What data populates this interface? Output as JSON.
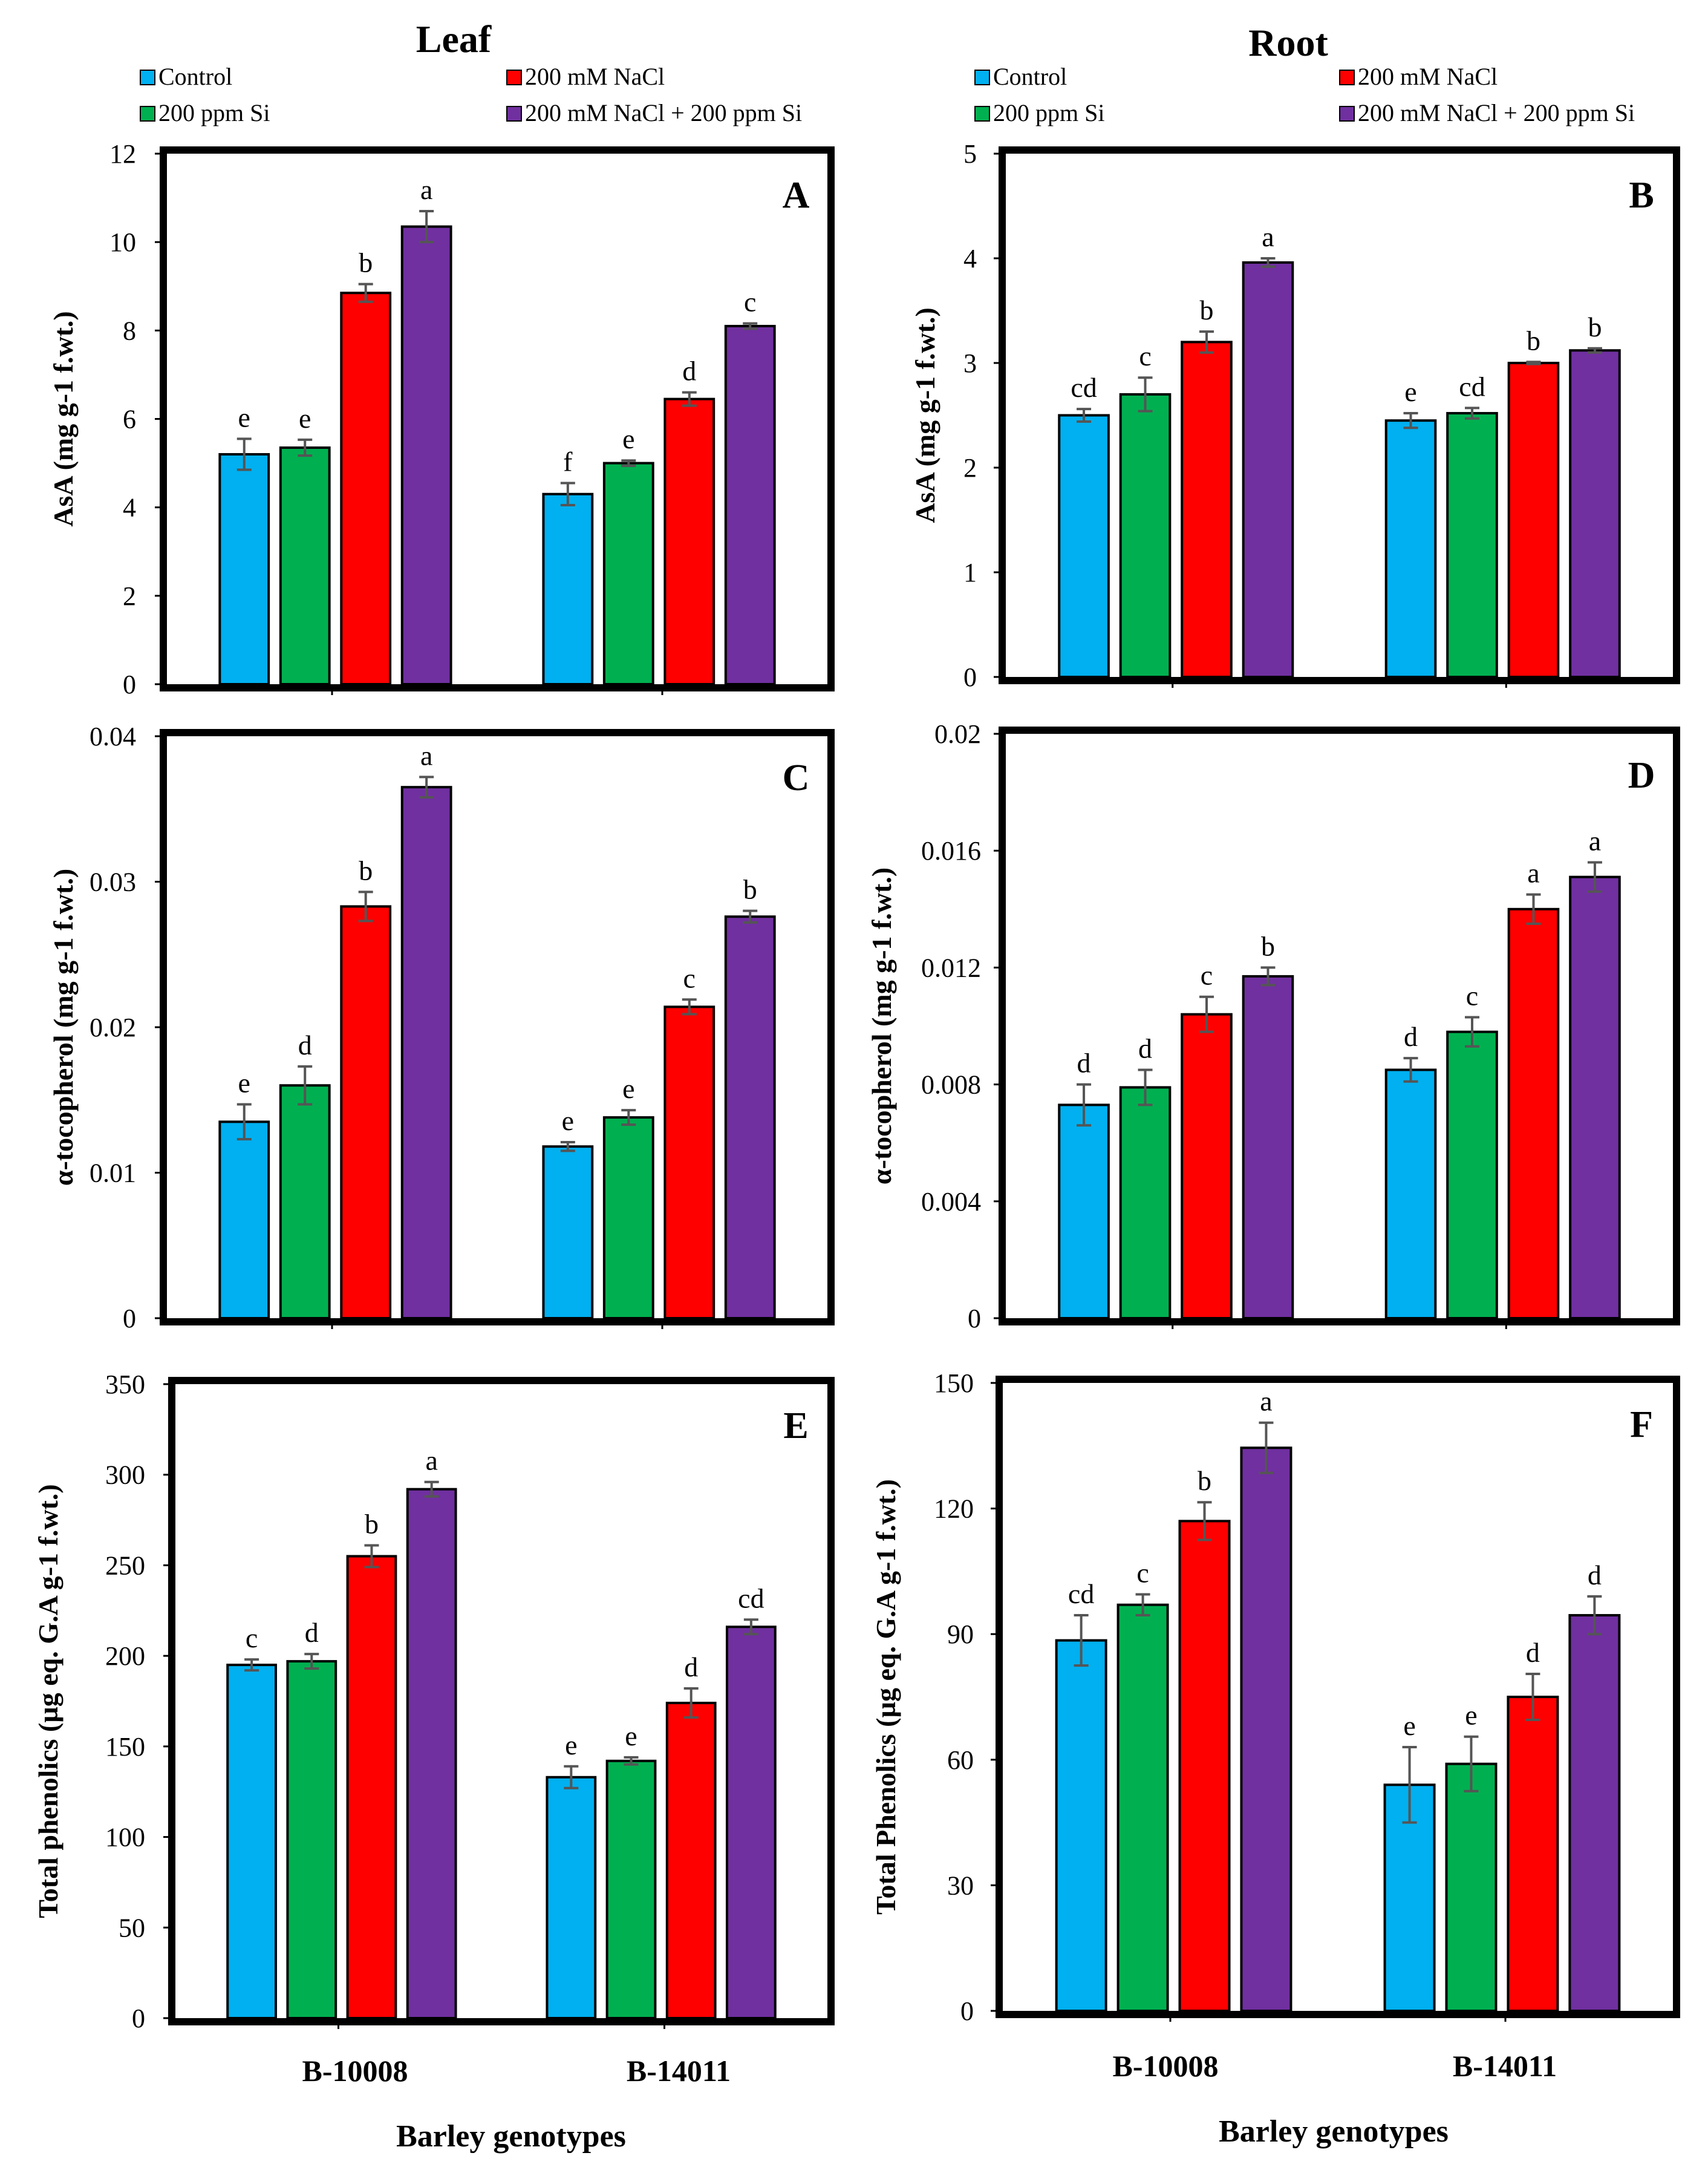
{
  "titles": {
    "left": "Leaf",
    "right": "Root"
  },
  "legend": [
    {
      "label": "Control",
      "color": "#00B0F0"
    },
    {
      "label": "200 ppm Si",
      "color": "#00B050"
    },
    {
      "label": "200 mM NaCl",
      "color": "#FF0000"
    },
    {
      "label": "200 mM NaCl + 200 ppm Si",
      "color": "#7030A0"
    }
  ],
  "categories": [
    "B-10008",
    "B-14011"
  ],
  "x_label": "Barley genotypes",
  "chart_data": [
    {
      "panel": "A",
      "type": "bar",
      "title": "Leaf",
      "ylabel": "AsA (mg g-1 f.wt.)",
      "ylim": [
        0,
        12
      ],
      "yticks": [
        "0",
        "2",
        "4",
        "6",
        "8",
        "10",
        "12"
      ],
      "categories": [
        "B-10008",
        "B-14011"
      ],
      "series": [
        {
          "name": "Control",
          "values": [
            5.2,
            4.3
          ],
          "errors": [
            0.35,
            0.25
          ],
          "letters": [
            "e",
            "f"
          ]
        },
        {
          "name": "200 ppm Si",
          "values": [
            5.35,
            5.0
          ],
          "errors": [
            0.18,
            0.06
          ],
          "letters": [
            "e",
            "e"
          ]
        },
        {
          "name": "200 mM NaCl",
          "values": [
            8.85,
            6.45
          ],
          "errors": [
            0.2,
            0.15
          ],
          "letters": [
            "b",
            "d"
          ]
        },
        {
          "name": "200 mM NaCl + 200 ppm Si",
          "values": [
            10.35,
            8.1
          ],
          "errors": [
            0.35,
            0.06
          ],
          "letters": [
            "a",
            "c"
          ]
        }
      ]
    },
    {
      "panel": "B",
      "type": "bar",
      "title": "Root",
      "ylabel": "AsA (mg g-1 f.wt.)",
      "ylim": [
        0,
        5
      ],
      "yticks": [
        "0",
        "1",
        "2",
        "3",
        "4",
        "5"
      ],
      "categories": [
        "B-10008",
        "B-14011"
      ],
      "series": [
        {
          "name": "Control",
          "values": [
            2.5,
            2.45
          ],
          "errors": [
            0.06,
            0.07
          ],
          "letters": [
            "cd",
            "e"
          ]
        },
        {
          "name": "200 ppm Si",
          "values": [
            2.7,
            2.52
          ],
          "errors": [
            0.16,
            0.05
          ],
          "letters": [
            "c",
            "cd"
          ]
        },
        {
          "name": "200 mM NaCl",
          "values": [
            3.2,
            3.0
          ],
          "errors": [
            0.1,
            0.01
          ],
          "letters": [
            "b",
            "b"
          ]
        },
        {
          "name": "200 mM NaCl + 200 ppm Si",
          "values": [
            3.96,
            3.12
          ],
          "errors": [
            0.04,
            0.02
          ],
          "letters": [
            "a",
            "b"
          ]
        }
      ]
    },
    {
      "panel": "C",
      "type": "bar",
      "title": "Leaf",
      "ylabel": "α-tocopherol (mg g-1 f.wt.)",
      "ylim": [
        0,
        0.04
      ],
      "yticks": [
        "0",
        "0.01",
        "0.02",
        "0.03",
        "0.04"
      ],
      "categories": [
        "B-10008",
        "B-14011"
      ],
      "series": [
        {
          "name": "Control",
          "values": [
            0.0135,
            0.0118
          ],
          "errors": [
            0.0012,
            0.0003
          ],
          "letters": [
            "e",
            "e"
          ]
        },
        {
          "name": "200 ppm Si",
          "values": [
            0.016,
            0.0138
          ],
          "errors": [
            0.0013,
            0.0005
          ],
          "letters": [
            "d",
            "e"
          ]
        },
        {
          "name": "200 mM NaCl",
          "values": [
            0.0283,
            0.0214
          ],
          "errors": [
            0.001,
            0.0005
          ],
          "letters": [
            "b",
            "c"
          ]
        },
        {
          "name": "200 mM NaCl + 200 ppm Si",
          "values": [
            0.0365,
            0.0276
          ],
          "errors": [
            0.0007,
            0.0004
          ],
          "letters": [
            "a",
            "b"
          ]
        }
      ]
    },
    {
      "panel": "D",
      "type": "bar",
      "title": "Root",
      "ylabel": "α-tocopherol (mg g-1 f.wt.)",
      "ylim": [
        0,
        0.02
      ],
      "yticks": [
        "0",
        "0.004",
        "0.008",
        "0.012",
        "0.016",
        "0.02"
      ],
      "categories": [
        "B-10008",
        "B-14011"
      ],
      "series": [
        {
          "name": "Control",
          "values": [
            0.0073,
            0.0085
          ],
          "errors": [
            0.0007,
            0.0004
          ],
          "letters": [
            "d",
            "d"
          ]
        },
        {
          "name": "200 ppm Si",
          "values": [
            0.0079,
            0.0098
          ],
          "errors": [
            0.0006,
            0.0005
          ],
          "letters": [
            "d",
            "c"
          ]
        },
        {
          "name": "200 mM NaCl",
          "values": [
            0.0104,
            0.014
          ],
          "errors": [
            0.0006,
            0.0005
          ],
          "letters": [
            "c",
            "a"
          ]
        },
        {
          "name": "200 mM NaCl + 200 ppm Si",
          "values": [
            0.0117,
            0.0151
          ],
          "errors": [
            0.0003,
            0.0005
          ],
          "letters": [
            "b",
            "a"
          ]
        }
      ]
    },
    {
      "panel": "E",
      "type": "bar",
      "title": "Leaf",
      "ylabel": "Total phenolics (µg eq. G.A g-1 f.wt.)",
      "ylim": [
        0,
        350
      ],
      "yticks": [
        "0",
        "50",
        "100",
        "150",
        "200",
        "250",
        "300",
        "350"
      ],
      "categories": [
        "B-10008",
        "B-14011"
      ],
      "series": [
        {
          "name": "Control",
          "values": [
            195,
            133
          ],
          "errors": [
            3,
            6
          ],
          "letters": [
            "c",
            "e"
          ]
        },
        {
          "name": "200 ppm Si",
          "values": [
            197,
            142
          ],
          "errors": [
            4,
            2
          ],
          "letters": [
            "d",
            "e"
          ]
        },
        {
          "name": "200 mM NaCl",
          "values": [
            255,
            174
          ],
          "errors": [
            6,
            8
          ],
          "letters": [
            "b",
            "d"
          ]
        },
        {
          "name": "200 mM NaCl + 200 ppm Si",
          "values": [
            292,
            216
          ],
          "errors": [
            4,
            4
          ],
          "letters": [
            "a",
            "cd"
          ]
        }
      ]
    },
    {
      "panel": "F",
      "type": "bar",
      "title": "Root",
      "ylabel": "Total Phenolics (µg eq. G.A g-1 f.wt.)",
      "ylim": [
        0,
        150
      ],
      "yticks": [
        "0",
        "30",
        "60",
        "90",
        "120",
        "150"
      ],
      "categories": [
        "B-10008",
        "B-14011"
      ],
      "series": [
        {
          "name": "Control",
          "values": [
            88.5,
            54
          ],
          "errors": [
            6,
            9
          ],
          "letters": [
            "cd",
            "e"
          ]
        },
        {
          "name": "200 ppm Si",
          "values": [
            97,
            59
          ],
          "errors": [
            2.5,
            6.5
          ],
          "letters": [
            "c",
            "e"
          ]
        },
        {
          "name": "200 mM NaCl",
          "values": [
            117,
            75
          ],
          "errors": [
            4.5,
            5.5
          ],
          "letters": [
            "b",
            "d"
          ]
        },
        {
          "name": "200 mM NaCl + 200 ppm Si",
          "values": [
            134.5,
            94.5
          ],
          "errors": [
            6,
            4.5
          ],
          "letters": [
            "a",
            "d"
          ]
        }
      ]
    }
  ]
}
